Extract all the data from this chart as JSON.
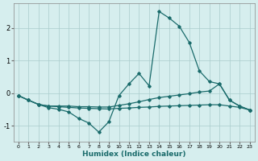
{
  "xlabel": "Humidex (Indice chaleur)",
  "background_color": "#d6eeee",
  "grid_color": "#aacccc",
  "line_color": "#1a6b6b",
  "xlim": [
    -0.5,
    23.5
  ],
  "ylim": [
    -1.5,
    2.75
  ],
  "yticks": [
    -1,
    0,
    1,
    2
  ],
  "x": [
    0,
    1,
    2,
    3,
    4,
    5,
    6,
    7,
    8,
    9,
    10,
    11,
    12,
    13,
    14,
    15,
    16,
    17,
    18,
    19,
    20,
    21,
    22,
    23
  ],
  "y_main": [
    -0.08,
    -0.22,
    -0.35,
    -0.45,
    -0.5,
    -0.58,
    -0.78,
    -0.92,
    -1.2,
    -0.88,
    -0.08,
    0.28,
    0.6,
    0.22,
    2.5,
    2.3,
    2.05,
    1.55,
    0.68,
    0.35,
    0.28,
    -0.22,
    -0.4,
    -0.52
  ],
  "y_mid": [
    -0.08,
    -0.22,
    -0.35,
    -0.4,
    -0.4,
    -0.4,
    -0.42,
    -0.42,
    -0.43,
    -0.43,
    -0.38,
    -0.33,
    -0.27,
    -0.2,
    -0.14,
    -0.1,
    -0.06,
    -0.02,
    0.03,
    0.06,
    0.28,
    -0.22,
    -0.4,
    -0.52
  ],
  "y_low": [
    -0.08,
    -0.22,
    -0.35,
    -0.4,
    -0.42,
    -0.44,
    -0.46,
    -0.47,
    -0.48,
    -0.49,
    -0.47,
    -0.46,
    -0.44,
    -0.43,
    -0.41,
    -0.4,
    -0.39,
    -0.38,
    -0.37,
    -0.36,
    -0.36,
    -0.4,
    -0.44,
    -0.52
  ]
}
